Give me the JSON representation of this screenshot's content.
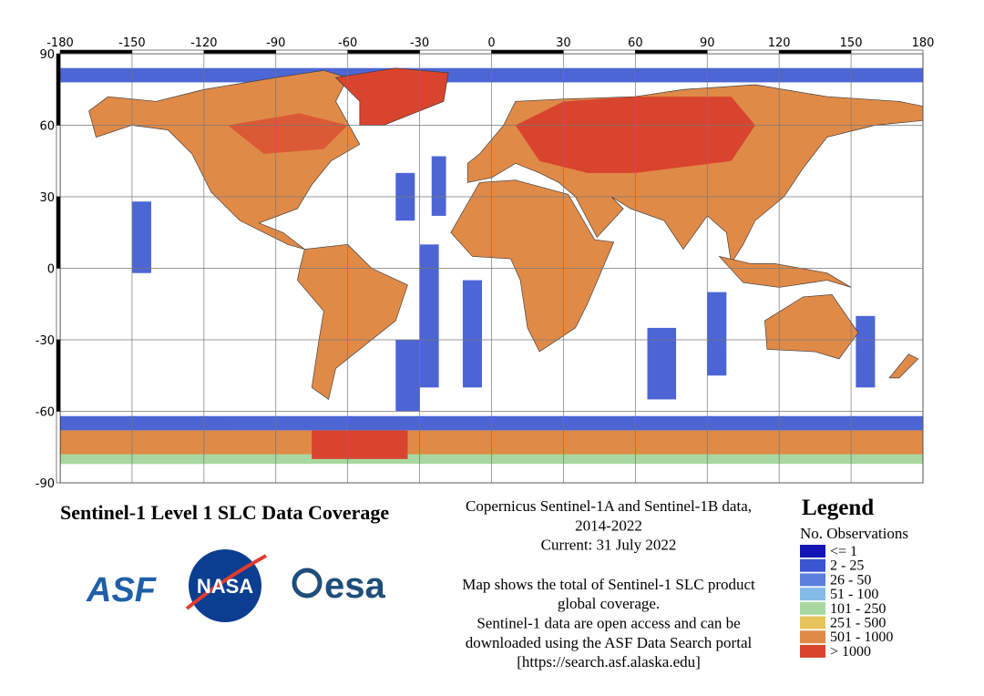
{
  "map": {
    "xlim": [
      -180,
      180
    ],
    "ylim": [
      -90,
      90
    ],
    "xticks": [
      -180,
      -150,
      -120,
      -90,
      -60,
      -30,
      0,
      30,
      60,
      90,
      120,
      150,
      180
    ],
    "yticks": [
      90,
      60,
      30,
      0,
      -30,
      -60,
      -90
    ],
    "grid": true
  },
  "title": "Sentinel-1 Level 1 SLC Data Coverage",
  "logos": [
    "ASF",
    "NASA",
    "esa"
  ],
  "description": [
    [
      "Copernicus Sentinel-1A and Sentinel-1B data,",
      "2014-2022",
      "Current: 31 July 2022"
    ],
    [
      "Map shows the total of Sentinel-1 SLC product",
      "global coverage.",
      "Sentinel-1 data are open access and can be",
      "downloaded using the ASF Data Search portal",
      "[https://search.asf.alaska.edu]"
    ]
  ],
  "legend": {
    "title": "Legend",
    "subtitle": "No. Observations",
    "items": [
      {
        "label": "<= 1",
        "color": "#1515b5"
      },
      {
        "label": "2 - 25",
        "color": "#3a55d0"
      },
      {
        "label": "26 - 50",
        "color": "#5a7fdc"
      },
      {
        "label": "51 - 100",
        "color": "#84bbe8"
      },
      {
        "label": "101 - 250",
        "color": "#a8d8a0"
      },
      {
        "label": "251 - 500",
        "color": "#e8c25a"
      },
      {
        "label": "501 - 1000",
        "color": "#e08a48"
      },
      {
        "label": "> 1000",
        "color": "#d8442e"
      }
    ]
  }
}
